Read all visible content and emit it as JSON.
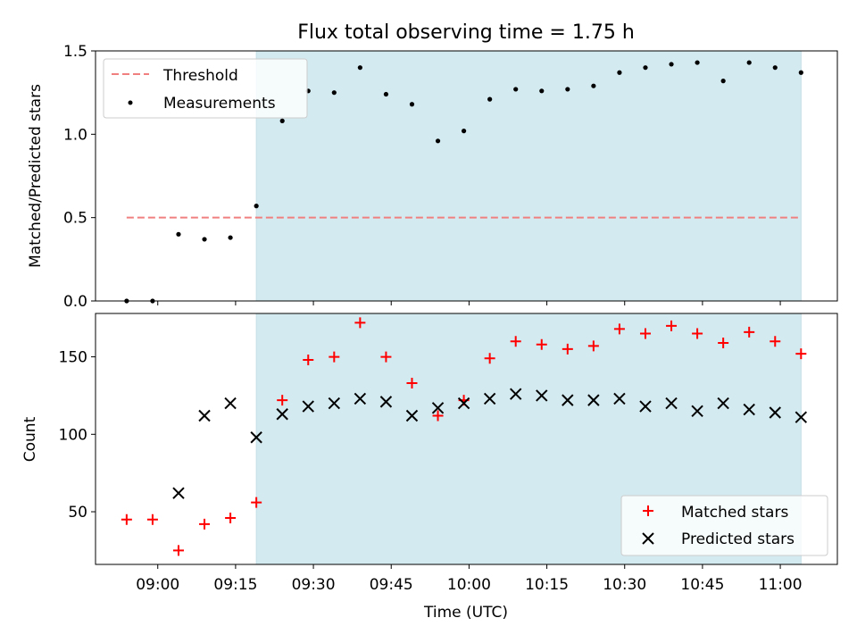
{
  "title": "Flux total observing time = 1.75 h",
  "xlabel": "Time (UTC)",
  "x_ticks": [
    "09:00",
    "09:15",
    "09:30",
    "09:45",
    "10:00",
    "10:15",
    "10:30",
    "10:45",
    "11:00"
  ],
  "colors": {
    "shade": "#d3eaf0",
    "threshold": "#f08080",
    "matched": "#ff0000",
    "predicted": "#000000",
    "measurements": "#000000"
  },
  "chart_data": [
    {
      "type": "scatter",
      "ylabel": "Matched/Predicted stars",
      "ylim": [
        0,
        1.5
      ],
      "y_ticks": [
        "0.0",
        "0.5",
        "1.0",
        "1.5"
      ],
      "xlim": [
        "08:48",
        "11:11"
      ],
      "shaded_range": [
        "09:19",
        "11:04"
      ],
      "threshold": {
        "name": "Threshold",
        "value": 0.5,
        "x_range": [
          "08:54",
          "11:04"
        ]
      },
      "legend_position": "top-left",
      "series": [
        {
          "name": "Measurements",
          "x": [
            "08:54",
            "08:59",
            "09:04",
            "09:09",
            "09:14",
            "09:19",
            "09:24",
            "09:29",
            "09:34",
            "09:39",
            "09:44",
            "09:49",
            "09:54",
            "09:59",
            "10:04",
            "10:09",
            "10:14",
            "10:19",
            "10:24",
            "10:29",
            "10:34",
            "10:39",
            "10:44",
            "10:49",
            "10:54",
            "10:59",
            "11:04"
          ],
          "y": [
            0.0,
            0.0,
            0.4,
            0.37,
            0.38,
            0.57,
            1.08,
            1.26,
            1.25,
            1.4,
            1.24,
            1.18,
            0.96,
            1.02,
            1.21,
            1.27,
            1.26,
            1.27,
            1.29,
            1.37,
            1.4,
            1.42,
            1.43,
            1.32,
            1.43,
            1.4,
            1.37
          ]
        }
      ]
    },
    {
      "type": "scatter",
      "ylabel": "Count",
      "ylim": [
        16,
        178
      ],
      "y_ticks": [
        "50",
        "100",
        "150"
      ],
      "xlim": [
        "08:48",
        "11:11"
      ],
      "shaded_range": [
        "09:19",
        "11:04"
      ],
      "legend_position": "bottom-right",
      "series": [
        {
          "name": "Matched stars",
          "x": [
            "08:54",
            "08:59",
            "09:04",
            "09:09",
            "09:14",
            "09:19",
            "09:24",
            "09:29",
            "09:34",
            "09:39",
            "09:44",
            "09:49",
            "09:54",
            "09:59",
            "10:04",
            "10:09",
            "10:14",
            "10:19",
            "10:24",
            "10:29",
            "10:34",
            "10:39",
            "10:44",
            "10:49",
            "10:54",
            "10:59",
            "11:04"
          ],
          "y": [
            45,
            45,
            25,
            42,
            46,
            56,
            122,
            148,
            150,
            172,
            150,
            133,
            112,
            122,
            149,
            160,
            158,
            155,
            157,
            168,
            165,
            170,
            165,
            159,
            166,
            160,
            152
          ]
        },
        {
          "name": "Predicted stars",
          "x": [
            "09:04",
            "09:09",
            "09:14",
            "09:19",
            "09:24",
            "09:29",
            "09:34",
            "09:39",
            "09:44",
            "09:49",
            "09:54",
            "09:59",
            "10:04",
            "10:09",
            "10:14",
            "10:19",
            "10:24",
            "10:29",
            "10:34",
            "10:39",
            "10:44",
            "10:49",
            "10:54",
            "10:59",
            "11:04"
          ],
          "y": [
            62,
            112,
            120,
            98,
            113,
            118,
            120,
            123,
            121,
            112,
            117,
            120,
            123,
            126,
            125,
            122,
            122,
            123,
            118,
            120,
            115,
            120,
            116,
            114,
            111
          ]
        }
      ]
    }
  ]
}
